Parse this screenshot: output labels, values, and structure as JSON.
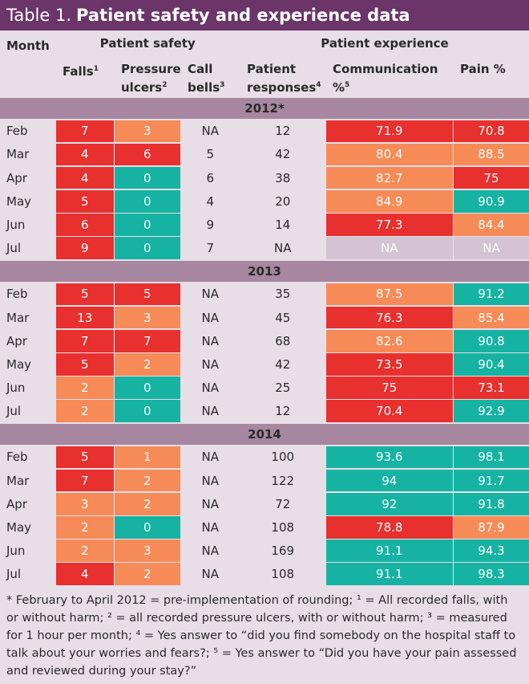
{
  "title": {
    "label": "Table 1.",
    "text": "Patient safety and experience data"
  },
  "header": {
    "month": "Month",
    "safety": "Patient safety",
    "experience": "Patient experience",
    "columns": [
      {
        "text": "Falls",
        "note": "1"
      },
      {
        "text": "Pressure ulcers",
        "note": "2"
      },
      {
        "text": "Call bells",
        "note": "3"
      },
      {
        "text": "Patient responses",
        "note": "4"
      },
      {
        "text": "Communication %",
        "note": "5"
      },
      {
        "text": "Pain %",
        "note": null
      }
    ]
  },
  "sections": [
    {
      "year": "2012*",
      "rows": [
        [
          "Feb",
          "7",
          "3",
          "NA",
          "12",
          "71.9",
          "70.8"
        ],
        [
          "Mar",
          "4",
          "6",
          "5",
          "42",
          "80.4",
          "88.5"
        ],
        [
          "Apr",
          "4",
          "0",
          "6",
          "38",
          "82.7",
          "75"
        ],
        [
          "May",
          "5",
          "0",
          "4",
          "20",
          "84.9",
          "90.9"
        ],
        [
          "Jun",
          "6",
          "0",
          "9",
          "14",
          "77.3",
          "84.4"
        ],
        [
          "Jul",
          "9",
          "0",
          "7",
          "NA",
          "NA",
          "NA"
        ]
      ],
      "colors": [
        [
          null,
          "#e8302f",
          "#f68b58",
          null,
          null,
          "#e8302f",
          "#e8302f"
        ],
        [
          null,
          "#e8302f",
          "#e8302f",
          null,
          null,
          "#f68b58",
          "#f68b58"
        ],
        [
          null,
          "#e8302f",
          "#16b3a2",
          null,
          null,
          "#f68b58",
          "#e8302f"
        ],
        [
          null,
          "#e8302f",
          "#16b3a2",
          null,
          null,
          "#f68b58",
          "#16b3a2"
        ],
        [
          null,
          "#e8302f",
          "#16b3a2",
          null,
          null,
          "#e8302f",
          "#f68b58"
        ],
        [
          null,
          "#e8302f",
          "#16b3a2",
          null,
          null,
          "#d3c3d3",
          "#d3c3d3"
        ]
      ]
    },
    {
      "year": "2013",
      "rows": [
        [
          "Feb",
          "5",
          "5",
          "NA",
          "35",
          "87.5",
          "91.2"
        ],
        [
          "Mar",
          "13",
          "3",
          "NA",
          "45",
          "76.3",
          "85.4"
        ],
        [
          "Apr",
          "7",
          "7",
          "NA",
          "68",
          "82.6",
          "90.8"
        ],
        [
          "May",
          "5",
          "2",
          "NA",
          "42",
          "73.5",
          "90.4"
        ],
        [
          "Jun",
          "2",
          "0",
          "NA",
          "25",
          "75",
          "73.1"
        ],
        [
          "Jul",
          "2",
          "0",
          "NA",
          "12",
          "70.4",
          "92.9"
        ]
      ],
      "colors": [
        [
          null,
          "#e8302f",
          "#e8302f",
          null,
          null,
          "#f68b58",
          "#16b3a2"
        ],
        [
          null,
          "#e8302f",
          "#f68b58",
          null,
          null,
          "#e8302f",
          "#f68b58"
        ],
        [
          null,
          "#e8302f",
          "#e8302f",
          null,
          null,
          "#f68b58",
          "#16b3a2"
        ],
        [
          null,
          "#e8302f",
          "#f68b58",
          null,
          null,
          "#e8302f",
          "#16b3a2"
        ],
        [
          null,
          "#f68b58",
          "#16b3a2",
          null,
          null,
          "#e8302f",
          "#e8302f"
        ],
        [
          null,
          "#f68b58",
          "#16b3a2",
          null,
          null,
          "#e8302f",
          "#16b3a2"
        ]
      ]
    },
    {
      "year": "2014",
      "rows": [
        [
          "Feb",
          "5",
          "1",
          "NA",
          "100",
          "93.6",
          "98.1"
        ],
        [
          "Mar",
          "7",
          "2",
          "NA",
          "122",
          "94",
          "91.7"
        ],
        [
          "Apr",
          "3",
          "2",
          "NA",
          "72",
          "92",
          "91.8"
        ],
        [
          "May",
          "2",
          "0",
          "NA",
          "108",
          "78.8",
          "87.9"
        ],
        [
          "Jun",
          "2",
          "3",
          "NA",
          "169",
          "91.1",
          "94.3"
        ],
        [
          "Jul",
          "4",
          "2",
          "NA",
          "108",
          "91.1",
          "98.3"
        ]
      ],
      "colors": [
        [
          null,
          "#e8302f",
          "#f68b58",
          null,
          null,
          "#16b3a2",
          "#16b3a2"
        ],
        [
          null,
          "#e8302f",
          "#f68b58",
          null,
          null,
          "#16b3a2",
          "#16b3a2"
        ],
        [
          null,
          "#f68b58",
          "#f68b58",
          null,
          null,
          "#16b3a2",
          "#16b3a2"
        ],
        [
          null,
          "#f68b58",
          "#16b3a2",
          null,
          null,
          "#e8302f",
          "#f68b58"
        ],
        [
          null,
          "#f68b58",
          "#f68b58",
          null,
          null,
          "#16b3a2",
          "#16b3a2"
        ],
        [
          null,
          "#e8302f",
          "#f68b58",
          null,
          null,
          "#16b3a2",
          "#16b3a2"
        ]
      ]
    }
  ],
  "footer": "* February to April 2012 = pre-implementation of rounding; ¹ = All recorded falls, with or without harm; ² = all recorded pressure ulcers, with or without harm; ³ = measured for 1 hour per month; ⁴ = Yes answer to “did you find somebody on the hospital staff to talk about your worries and fears?; ⁵ = Yes answer to “Did you have your pain assessed and reviewed during your stay?”"
}
